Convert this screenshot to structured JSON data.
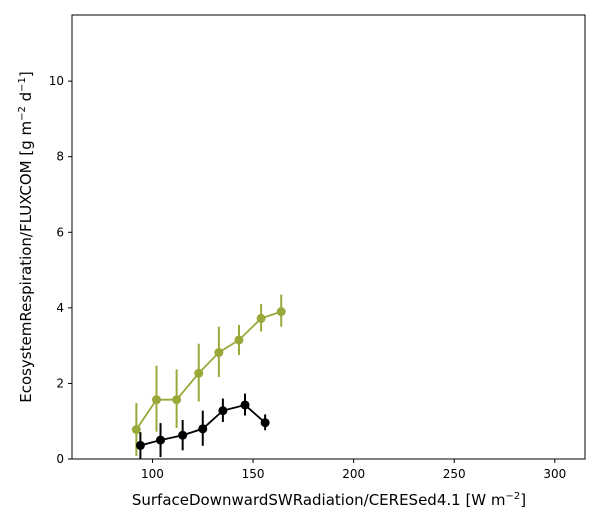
{
  "chart_data": {
    "type": "line",
    "xlabel": {
      "main": "SurfaceDownwardSWRadiation/CERESed4.1 [W m",
      "sup": "−2",
      "end": "]"
    },
    "ylabel": {
      "main": "EcosystemRespiration/FLUXCOM [g m",
      "sup1": "−2",
      "mid": " d",
      "sup2": "−1",
      "end": "]"
    },
    "xlim": [
      60,
      315
    ],
    "ylim": [
      0,
      11.75
    ],
    "xticks": [
      {
        "value": 100,
        "label": "100"
      },
      {
        "value": 150,
        "label": "150"
      },
      {
        "value": 200,
        "label": "200"
      },
      {
        "value": 250,
        "label": "250"
      },
      {
        "value": 300,
        "label": "300"
      }
    ],
    "yticks": [
      {
        "value": 0,
        "label": "0"
      },
      {
        "value": 2,
        "label": "2"
      },
      {
        "value": 4,
        "label": "4"
      },
      {
        "value": 6,
        "label": "6"
      },
      {
        "value": 8,
        "label": "8"
      },
      {
        "value": 10,
        "label": "10"
      }
    ],
    "grid": false,
    "series": [
      {
        "color": "#9aa83a",
        "x": [
          92,
          102,
          112,
          123,
          133,
          143,
          154,
          164
        ],
        "y": [
          0.78,
          1.57,
          1.57,
          2.27,
          2.82,
          3.15,
          3.72,
          3.9
        ],
        "err_low": [
          0.7,
          0.85,
          0.75,
          0.75,
          0.65,
          0.4,
          0.35,
          0.4
        ],
        "err_high": [
          0.7,
          0.9,
          0.8,
          0.78,
          0.68,
          0.4,
          0.38,
          0.45
        ]
      },
      {
        "color": "#000000",
        "x": [
          94,
          104,
          115,
          125,
          135,
          146,
          156
        ],
        "y": [
          0.36,
          0.5,
          0.63,
          0.8,
          1.28,
          1.43,
          0.96
        ],
        "err_low": [
          0.35,
          0.45,
          0.4,
          0.45,
          0.3,
          0.28,
          0.2
        ],
        "err_high": [
          0.35,
          0.45,
          0.4,
          0.48,
          0.32,
          0.3,
          0.22
        ]
      }
    ]
  }
}
